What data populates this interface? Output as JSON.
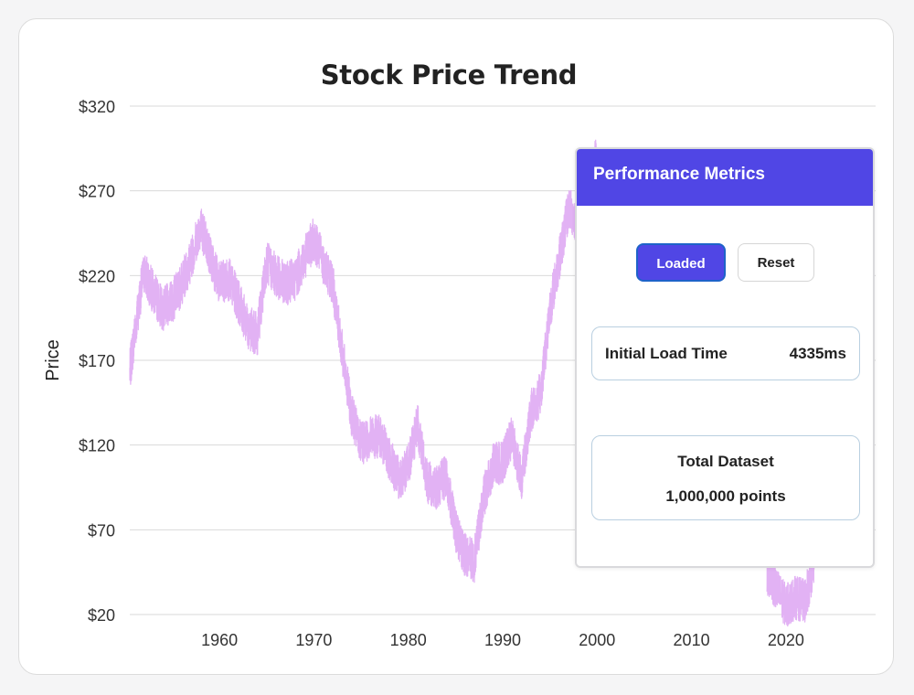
{
  "chart_data": {
    "type": "line",
    "title": "Stock Price Trend",
    "ylabel": "Price",
    "xlabel": "",
    "xlim": [
      1950.5,
      2029.5
    ],
    "ylim": [
      20,
      320
    ],
    "x_ticks": [
      "1960",
      "1970",
      "1980",
      "1990",
      "2000",
      "2010",
      "2020"
    ],
    "y_ticks": [
      "$20",
      "$70",
      "$120",
      "$170",
      "$220",
      "$270",
      "$320"
    ],
    "grid": "horizontal",
    "legend": "none",
    "line_color": "#e2b2f4",
    "series": [
      {
        "x": [
          1950.5,
          1951.0,
          1951.5,
          1952.0,
          1953.0,
          1954.0,
          1955.0,
          1956.0,
          1957.0,
          1958.0,
          1959.0,
          1960.0,
          1961.0,
          1962.0,
          1963.0,
          1964.0,
          1965.0,
          1966.0,
          1967.0,
          1968.0,
          1969.0,
          1970.0,
          1971.0,
          1972.0,
          1973.0,
          1974.0,
          1975.0,
          1976.0,
          1977.0,
          1978.0,
          1979.0,
          1980.0,
          1981.0,
          1982.0,
          1983.0,
          1984.0,
          1985.0,
          1986.0,
          1987.0,
          1988.0,
          1989.0,
          1990.0,
          1991.0,
          1992.0,
          1993.0,
          1994.0,
          1995.0,
          1996.0,
          1997.0,
          1998.0,
          1999.0,
          2000.0,
          2018.0,
          2019.0,
          2020.0,
          2021.0,
          2022.0,
          2023.0
        ],
        "y": [
          163,
          185,
          205,
          222,
          210,
          200,
          205,
          215,
          230,
          250,
          232,
          215,
          218,
          205,
          190,
          185,
          228,
          220,
          215,
          218,
          230,
          242,
          228,
          215,
          175,
          138,
          120,
          125,
          125,
          112,
          100,
          108,
          132,
          98,
          95,
          102,
          70,
          55,
          52,
          90,
          108,
          110,
          125,
          100,
          140,
          150,
          200,
          230,
          260,
          250,
          275,
          290,
          45,
          35,
          25,
          30,
          28,
          50
        ]
      }
    ]
  },
  "panel": {
    "title": "Performance Metrics",
    "buttons": {
      "loaded": "Loaded",
      "reset": "Reset"
    },
    "metrics": {
      "load_time": {
        "label": "Initial Load Time",
        "value": "4335ms"
      },
      "dataset": {
        "label": "Total Dataset",
        "value": "1,000,000 points"
      }
    }
  },
  "colors": {
    "accent": "#5046e5",
    "line": "#e2b2f4",
    "grid": "#d9d9d9"
  }
}
